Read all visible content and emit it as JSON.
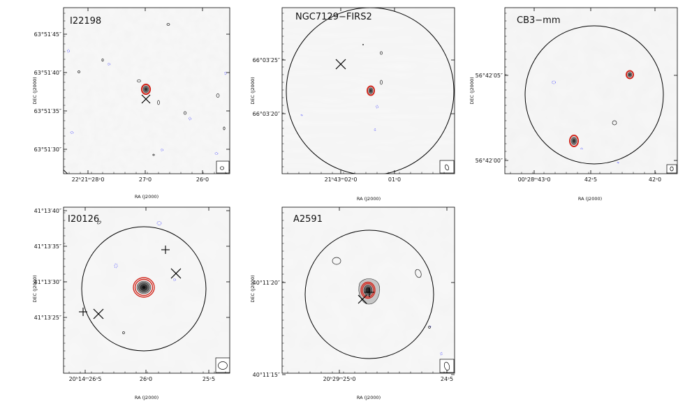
{
  "figure": {
    "description_free": true,
    "colors": {
      "contour_outer": "#d0281e",
      "contour_inner": "#333333",
      "negative_contour": "#4a4aff",
      "noise_light": "#f6f6f6",
      "noise_dark": "#e4e4e4",
      "axis": "#000000"
    }
  },
  "chart_data": [
    {
      "type": "image",
      "title": "I22198",
      "xlabel": "RA (J2000)",
      "ylabel": "DEC (J2000)",
      "x_ticks": [
        "22ʰ21ᵐ28ˢ0",
        "27ˢ0",
        "26ˢ0"
      ],
      "y_ticks": [
        "63°51′45″",
        "63°51′40″",
        "63°51′35″",
        "63°51′30″"
      ],
      "primary_beam_circle": true,
      "sources": [
        {
          "label": "mm core",
          "contours": 3
        }
      ],
      "markers": [
        {
          "type": "x"
        }
      ]
    },
    {
      "type": "image",
      "title": "NGC7129−FIRS2",
      "xlabel": "RA (J2000)",
      "ylabel": "DEC (J2000)",
      "x_ticks": [
        "21ʰ43ᵐ02ˢ0",
        "01ˢ0"
      ],
      "y_ticks": [
        "66°03′25″",
        "66°03′20″"
      ],
      "primary_beam_circle": true,
      "sources": [
        {
          "label": "mm core",
          "contours": 2
        }
      ],
      "markers": [
        {
          "type": "x"
        }
      ]
    },
    {
      "type": "image",
      "title": "CB3−mm",
      "xlabel": "RA (J2000)",
      "ylabel": "DEC (J2000)",
      "x_ticks": [
        "00ʰ28ᵐ43ˢ0",
        "42ˢ5",
        "42ˢ0"
      ],
      "y_ticks": [
        "56°42′05″",
        "56°42′00″"
      ],
      "primary_beam_circle": true,
      "sources": [
        {
          "label": "core 1",
          "contours": 3
        },
        {
          "label": "core 2",
          "contours": 3
        }
      ],
      "markers": []
    },
    {
      "type": "image",
      "title": "I20126",
      "xlabel": "RA (J2000)",
      "ylabel": "DEC (J2000)",
      "x_ticks": [
        "20ʰ14ᵐ26ˢ5",
        "26ˢ0",
        "25ˢ5"
      ],
      "y_ticks": [
        "41°13′40″",
        "41°13′35″",
        "41°13′30″",
        "41°13′25″"
      ],
      "primary_beam_circle": true,
      "sources": [
        {
          "label": "mm core",
          "contours": 6
        }
      ],
      "markers": [
        {
          "type": "plus"
        },
        {
          "type": "x"
        },
        {
          "type": "plus"
        },
        {
          "type": "x"
        }
      ]
    },
    {
      "type": "image",
      "title": "A2591",
      "xlabel": "RA (J2000)",
      "ylabel": "DEC (J2000)",
      "x_ticks": [
        "20ʰ29ᵐ25ˢ0",
        "24ˢ5"
      ],
      "y_ticks": [
        "40°11′20″",
        "40°11′15″"
      ],
      "primary_beam_circle": true,
      "sources": [
        {
          "label": "mm core",
          "contours": 5
        }
      ],
      "markers": [
        {
          "type": "plus"
        },
        {
          "type": "x"
        }
      ]
    }
  ]
}
